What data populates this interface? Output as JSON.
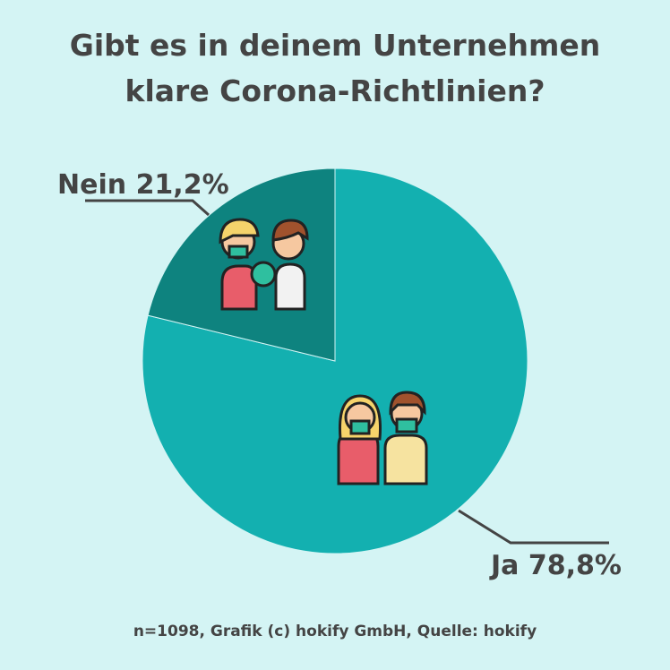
{
  "chart_data": {
    "type": "pie",
    "title": [
      "Gibt es in deinem Unternehmen",
      "klare Corona-Richtlinien?"
    ],
    "categories": [
      "Ja",
      "Nein"
    ],
    "values": [
      78.8,
      21.2
    ],
    "value_labels": [
      "78,8%",
      "21,2%"
    ],
    "colors": [
      "#13b0b0",
      "#0e837f"
    ],
    "source": "n=1098, Grafik (c) hokify GmbH, Quelle: hokify"
  }
}
